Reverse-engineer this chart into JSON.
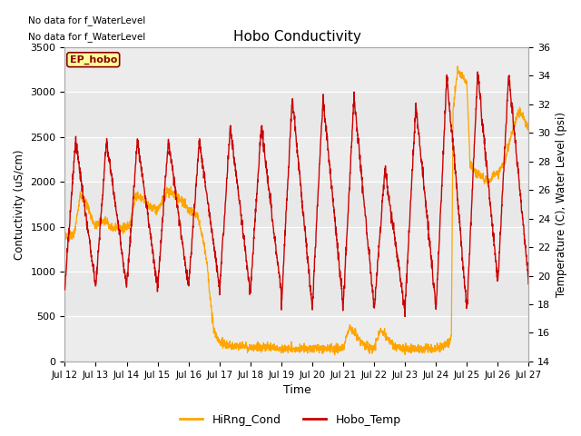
{
  "title": "Hobo Conductivity",
  "xlabel": "Time",
  "ylabel_left": "Contuctivity (uS/cm)",
  "ylabel_right": "Temperature (C), Water Level (psi)",
  "no_data_text1": "No data for f_WaterLevel",
  "no_data_text2": "No data for f_WaterLevel",
  "ep_hobo_label": "EP_hobo",
  "legend_entries": [
    "HiRng_Cond",
    "Hobo_Temp"
  ],
  "legend_colors": [
    "#FFA500",
    "#CC0000"
  ],
  "left_ylim": [
    0,
    3500
  ],
  "right_ylim": [
    14,
    36
  ],
  "left_yticks": [
    0,
    500,
    1000,
    1500,
    2000,
    2500,
    3000,
    3500
  ],
  "right_yticks": [
    14,
    16,
    18,
    20,
    22,
    24,
    26,
    28,
    30,
    32,
    34,
    36
  ],
  "bg_color": "#e8e8e8",
  "band1_color": "#d8d8d8",
  "xtick_labels": [
    "Jul 12",
    "Jul 13",
    "Jul 14",
    "Jul 15",
    "Jul 16",
    "Jul 17",
    "Jul 18",
    "Jul 19",
    "Jul 20",
    "Jul 21",
    "Jul 22",
    "Jul 23",
    "Jul 24",
    "Jul 25",
    "Jul 26",
    "Jul 27"
  ],
  "figsize": [
    6.4,
    4.8
  ],
  "dpi": 100
}
